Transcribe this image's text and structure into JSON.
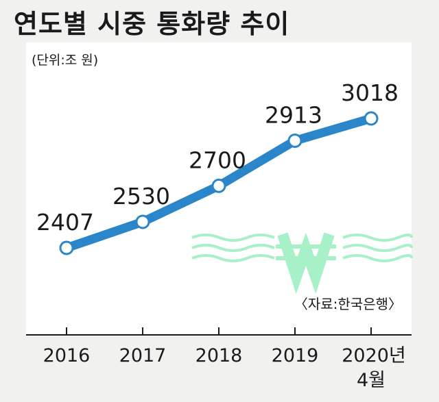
{
  "chart_data": {
    "type": "line",
    "title": "연도별 시중 통화량 추이",
    "unit_label": "(단위:조 원)",
    "source": "〈자료:한국은행〉",
    "categories": [
      "2016",
      "2017",
      "2018",
      "2019",
      "2020년"
    ],
    "category_sublabels": [
      "",
      "",
      "",
      "",
      "4월"
    ],
    "values": [
      2407,
      2530,
      2700,
      2913,
      3018
    ],
    "value_labels": [
      "2407",
      "2530",
      "2700",
      "2913",
      "3018"
    ],
    "ylim": [
      2300,
      3200
    ],
    "grid": false,
    "legend": "none",
    "colors": {
      "line": "#2a86c8",
      "marker_fill": "#ffffff",
      "panel": "#ffffff",
      "background": "#f1f1ef",
      "won_symbol": "#a8f0c8"
    },
    "decoration_icon": "won-symbol-with-waves-icon"
  }
}
